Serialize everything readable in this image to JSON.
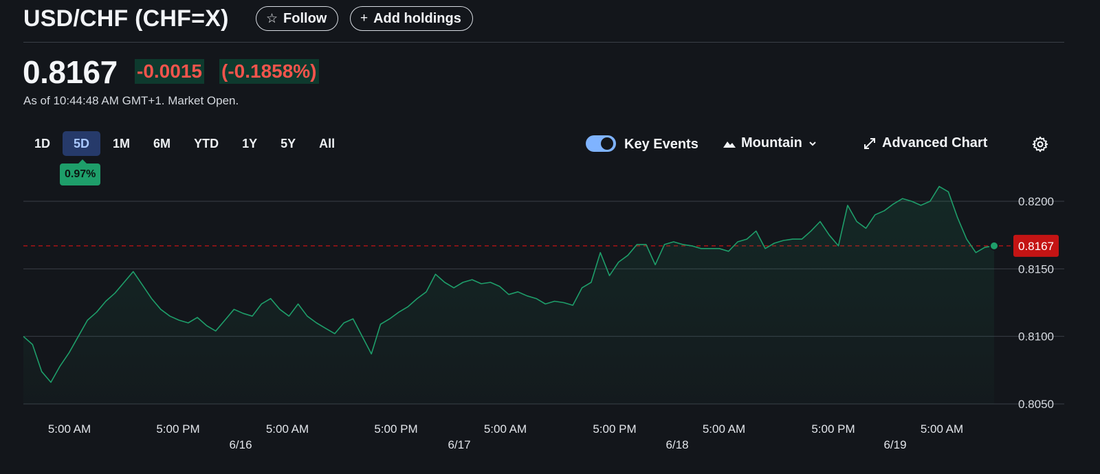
{
  "header": {
    "title": "USD/CHF (CHF=X)",
    "follow_label": "Follow",
    "add_holdings_label": "Add holdings"
  },
  "quote": {
    "price": "0.8167",
    "change": "-0.0015",
    "change_percent": "(-0.1858%)",
    "as_of": "As of 10:44:48 AM GMT+1. Market Open."
  },
  "ranges": [
    "1D",
    "5D",
    "1M",
    "6M",
    "YTD",
    "1Y",
    "5Y",
    "All"
  ],
  "selected_range": "5D",
  "range_change_tip": "0.97%",
  "controls": {
    "key_events_label": "Key Events",
    "key_events_on": true,
    "chart_type_label": "Mountain",
    "advanced_chart_label": "Advanced Chart"
  },
  "colors": {
    "line": "#1e9e6a",
    "negative": "#f2544c",
    "price_tag_bg": "#c41414",
    "accent_blue": "#7fb3ff"
  },
  "chart_data": {
    "type": "area",
    "ylim": [
      0.805,
      0.822
    ],
    "y_ticks": [
      "0.8200",
      "0.8150",
      "0.8100",
      "0.8050"
    ],
    "x_time_labels": [
      "5:00 AM",
      "5:00 PM",
      "5:00 AM",
      "5:00 PM",
      "5:00 AM",
      "5:00 PM",
      "5:00 AM",
      "5:00 PM",
      "5:00 AM"
    ],
    "x_date_labels": [
      "6/16",
      "6/17",
      "6/18",
      "6/19"
    ],
    "current_value": 0.8167,
    "current_value_label": "0.8167",
    "grid": true,
    "series": [
      {
        "x_hours": [
          0,
          1,
          2,
          3,
          4,
          5,
          6,
          7,
          8,
          9,
          10,
          11,
          12,
          13,
          14,
          15,
          16,
          17,
          18,
          19,
          20,
          21,
          22,
          23,
          24,
          25,
          26,
          27,
          28,
          29,
          30,
          31,
          32,
          33,
          34,
          35,
          36,
          37,
          38,
          39,
          40,
          41,
          42,
          43,
          44,
          45,
          46,
          47,
          48,
          49,
          50,
          51,
          52,
          53,
          54,
          55,
          56,
          57,
          58,
          59,
          60,
          61,
          62,
          63,
          64,
          65,
          66,
          67,
          68,
          69,
          70,
          71,
          72,
          73,
          74,
          75,
          76,
          77,
          78,
          79,
          80,
          81,
          82,
          83,
          84,
          85,
          86,
          87,
          88,
          89,
          90,
          91,
          92,
          93,
          94,
          95,
          96,
          97,
          98,
          99,
          100,
          101,
          102,
          103,
          104,
          105,
          106
        ],
        "values": [
          0.81,
          0.8094,
          0.8074,
          0.8066,
          0.8078,
          0.8088,
          0.81,
          0.8112,
          0.8118,
          0.8126,
          0.8132,
          0.814,
          0.8148,
          0.8138,
          0.8128,
          0.812,
          0.8115,
          0.8112,
          0.811,
          0.8114,
          0.8108,
          0.8104,
          0.8112,
          0.812,
          0.8117,
          0.8115,
          0.8124,
          0.8128,
          0.812,
          0.8115,
          0.8124,
          0.8115,
          0.811,
          0.8106,
          0.8102,
          0.811,
          0.8113,
          0.81,
          0.8087,
          0.8109,
          0.8113,
          0.8118,
          0.8122,
          0.8128,
          0.8133,
          0.8146,
          0.814,
          0.8136,
          0.814,
          0.8142,
          0.8139,
          0.814,
          0.8137,
          0.8131,
          0.8133,
          0.813,
          0.8128,
          0.8124,
          0.8126,
          0.8125,
          0.8123,
          0.8136,
          0.814,
          0.8162,
          0.8145,
          0.8155,
          0.816,
          0.8168,
          0.8168,
          0.8153,
          0.8168,
          0.817,
          0.8168,
          0.8167,
          0.8165,
          0.8165,
          0.8165,
          0.8163,
          0.817,
          0.8172,
          0.8178,
          0.8165,
          0.8169,
          0.8171,
          0.8172,
          0.8172,
          0.8178,
          0.8185,
          0.8175,
          0.8167,
          0.8197,
          0.8185,
          0.818,
          0.819,
          0.8193,
          0.8198,
          0.8202,
          0.82,
          0.8197,
          0.82,
          0.8211,
          0.8207,
          0.8188,
          0.8172,
          0.8162,
          0.8166,
          0.8167
        ]
      }
    ]
  }
}
